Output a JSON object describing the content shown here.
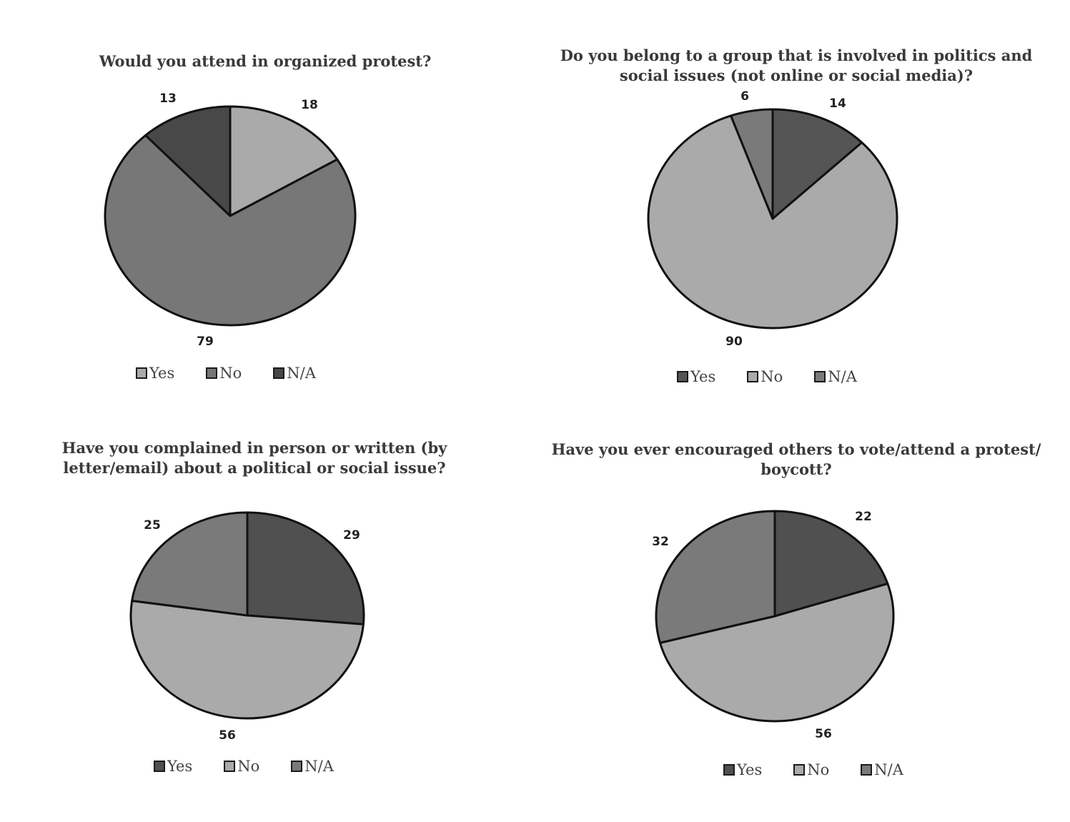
{
  "colors": {
    "light": "#aaaaaa",
    "medium": "#777777",
    "dark": "#484848",
    "outline": "#111111"
  },
  "chart_data": [
    {
      "type": "pie",
      "title": "Would you attend in organized protest?",
      "categories": [
        "Yes",
        "No",
        "N/A"
      ],
      "values": [
        18,
        79,
        13
      ],
      "colors": [
        "#aaaaaa",
        "#777777",
        "#484848"
      ],
      "legend": "bottom"
    },
    {
      "type": "pie",
      "title": "Do you belong to a group that is involved in politics and social issues (not online or social media)?",
      "categories": [
        "Yes",
        "No",
        "N/A"
      ],
      "values": [
        14,
        90,
        6
      ],
      "colors": [
        "#555555",
        "#aaaaaa",
        "#7a7a7a"
      ],
      "legend": "bottom"
    },
    {
      "type": "pie",
      "title": "Have you complained in person or written (by letter/email) about a political or social issue?",
      "categories": [
        "Yes",
        "No",
        "N/A"
      ],
      "values": [
        29,
        56,
        25
      ],
      "colors": [
        "#505050",
        "#aaaaaa",
        "#7a7a7a"
      ],
      "legend": "bottom"
    },
    {
      "type": "pie",
      "title": "Have you ever encouraged others to vote/attend a protest/ boycott?",
      "categories": [
        "Yes",
        "No",
        "N/A"
      ],
      "values": [
        22,
        56,
        32
      ],
      "colors": [
        "#505050",
        "#aaaaaa",
        "#7a7a7a"
      ],
      "legend": "bottom"
    }
  ]
}
